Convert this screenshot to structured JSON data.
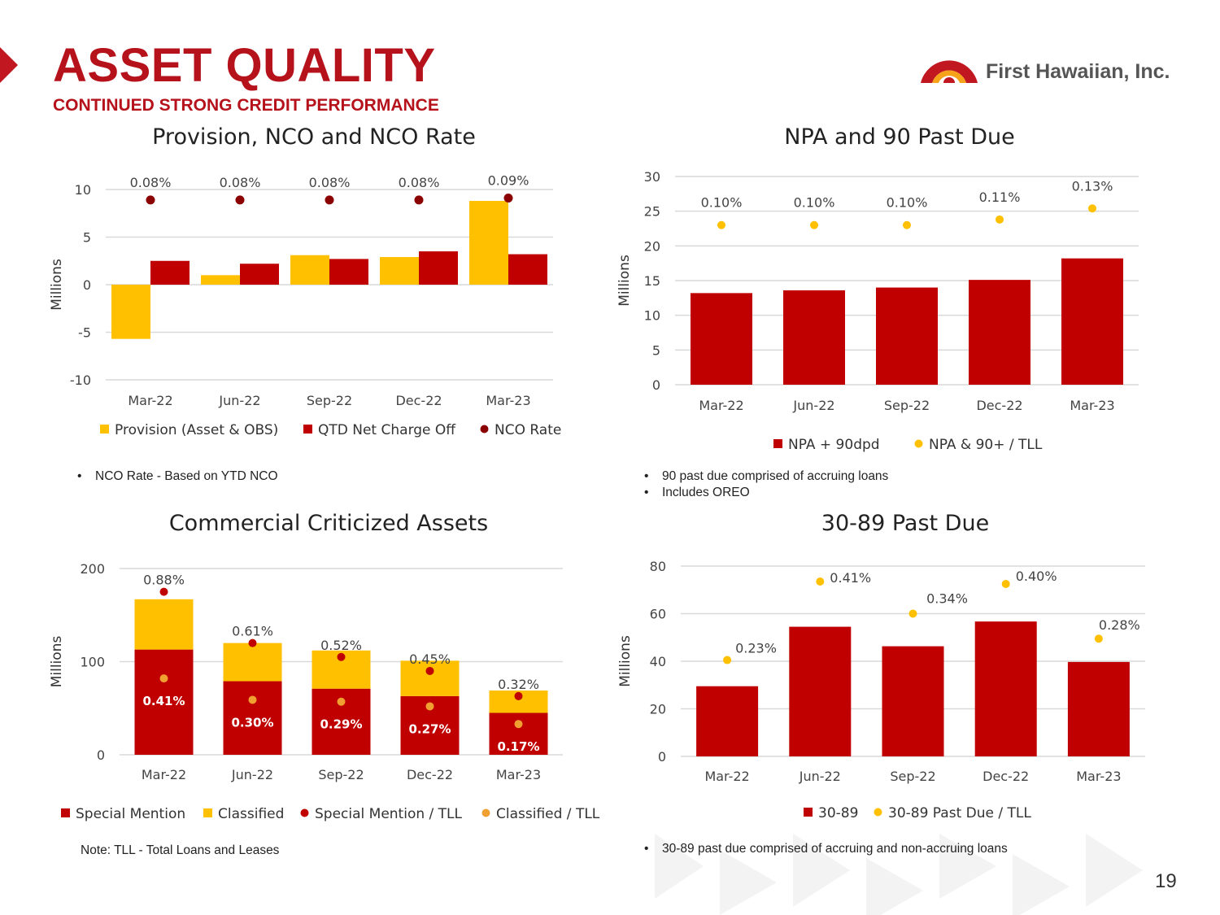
{
  "header": {
    "title": "ASSET QUALITY",
    "subtitle": "CONTINUED STRONG CREDIT PERFORMANCE",
    "logo_text": "First Hawaiian, Inc."
  },
  "colors": {
    "brand_red": "#b5121b",
    "bar_red": "#c00000",
    "gold": "#ffc000",
    "orange": "#f0a030",
    "dot_dark": "#8b0000"
  },
  "chart_data": [
    {
      "id": "provision",
      "type": "bar",
      "title": "Provision, NCO and NCO Rate",
      "ylabel": "Millions",
      "ylim": [
        -10,
        10
      ],
      "yticks": [
        -10,
        -5,
        0,
        5,
        10
      ],
      "categories": [
        "Mar-22",
        "Jun-22",
        "Sep-22",
        "Dec-22",
        "Mar-23"
      ],
      "series": [
        {
          "name": "Provision (Asset & OBS)",
          "values": [
            -5.7,
            1.0,
            3.1,
            2.9,
            8.8
          ]
        },
        {
          "name": "QTD Net Charge Off",
          "values": [
            2.5,
            2.2,
            2.7,
            3.5,
            3.2
          ]
        }
      ],
      "rate_series": {
        "name": "NCO Rate",
        "positions": [
          8.9,
          8.9,
          8.9,
          8.9,
          9.1
        ],
        "labels": [
          "0.08%",
          "0.08%",
          "0.08%",
          "0.08%",
          "0.09%"
        ]
      }
    },
    {
      "id": "npa",
      "type": "bar",
      "title": "NPA and 90 Past Due",
      "ylabel": "Millions",
      "ylim": [
        0,
        30
      ],
      "yticks": [
        0,
        5,
        10,
        15,
        20,
        25,
        30
      ],
      "categories": [
        "Mar-22",
        "Jun-22",
        "Sep-22",
        "Dec-22",
        "Mar-23"
      ],
      "series": [
        {
          "name": "NPA + 90dpd",
          "values": [
            13.2,
            13.6,
            14.0,
            15.1,
            18.2
          ]
        }
      ],
      "rate_series": {
        "name": "NPA & 90+ / TLL",
        "positions": [
          23.0,
          23.0,
          23.0,
          23.8,
          25.4
        ],
        "labels": [
          "0.10%",
          "0.10%",
          "0.10%",
          "0.11%",
          "0.13%"
        ]
      }
    },
    {
      "id": "criticized",
      "type": "bar",
      "title": "Commercial Criticized Assets",
      "ylabel": "Millions",
      "ylim": [
        0,
        200
      ],
      "yticks": [
        0,
        100,
        200
      ],
      "categories": [
        "Mar-22",
        "Jun-22",
        "Sep-22",
        "Dec-22",
        "Mar-23"
      ],
      "series": [
        {
          "name": "Special Mention",
          "values": [
            113,
            79,
            71,
            63,
            45
          ]
        },
        {
          "name": "Classified",
          "values": [
            54,
            41,
            41,
            38,
            24
          ]
        }
      ],
      "rate_series": {
        "name": "Special Mention / TLL",
        "positions": [
          175,
          120,
          105,
          90,
          63
        ],
        "labels": [
          "0.88%",
          "0.61%",
          "0.52%",
          "0.45%",
          "0.32%"
        ]
      },
      "rate_series_2": {
        "name": "Classified / TLL",
        "positions": [
          82,
          59,
          57,
          52,
          33
        ],
        "labels": [
          "0.41%",
          "0.30%",
          "0.29%",
          "0.27%",
          "0.17%"
        ]
      }
    },
    {
      "id": "pastdue",
      "type": "bar",
      "title": "30-89 Past Due",
      "ylabel": "Millions",
      "ylim": [
        0,
        80
      ],
      "yticks": [
        0,
        20,
        40,
        60,
        80
      ],
      "categories": [
        "Mar-22",
        "Jun-22",
        "Sep-22",
        "Dec-22",
        "Mar-23"
      ],
      "series": [
        {
          "name": "30-89",
          "values": [
            29.5,
            54.5,
            46.3,
            56.7,
            39.7
          ]
        }
      ],
      "rate_series": {
        "name": "30-89 Past Due / TLL",
        "positions": [
          40.5,
          73.5,
          60.0,
          72.5,
          49.5
        ],
        "labels": [
          "0.23%",
          "0.41%",
          "0.34%",
          "0.40%",
          "0.28%"
        ]
      }
    }
  ],
  "notes": {
    "provision": [
      "NCO Rate  - Based on  YTD NCO"
    ],
    "npa": [
      "90 past due comprised of accruing loans",
      "Includes OREO"
    ],
    "criticized": "Note: TLL  -  Total Loans and Leases",
    "pastdue": [
      "30-89 past due comprised of accruing and non-accruing loans"
    ]
  },
  "page_number": "19"
}
